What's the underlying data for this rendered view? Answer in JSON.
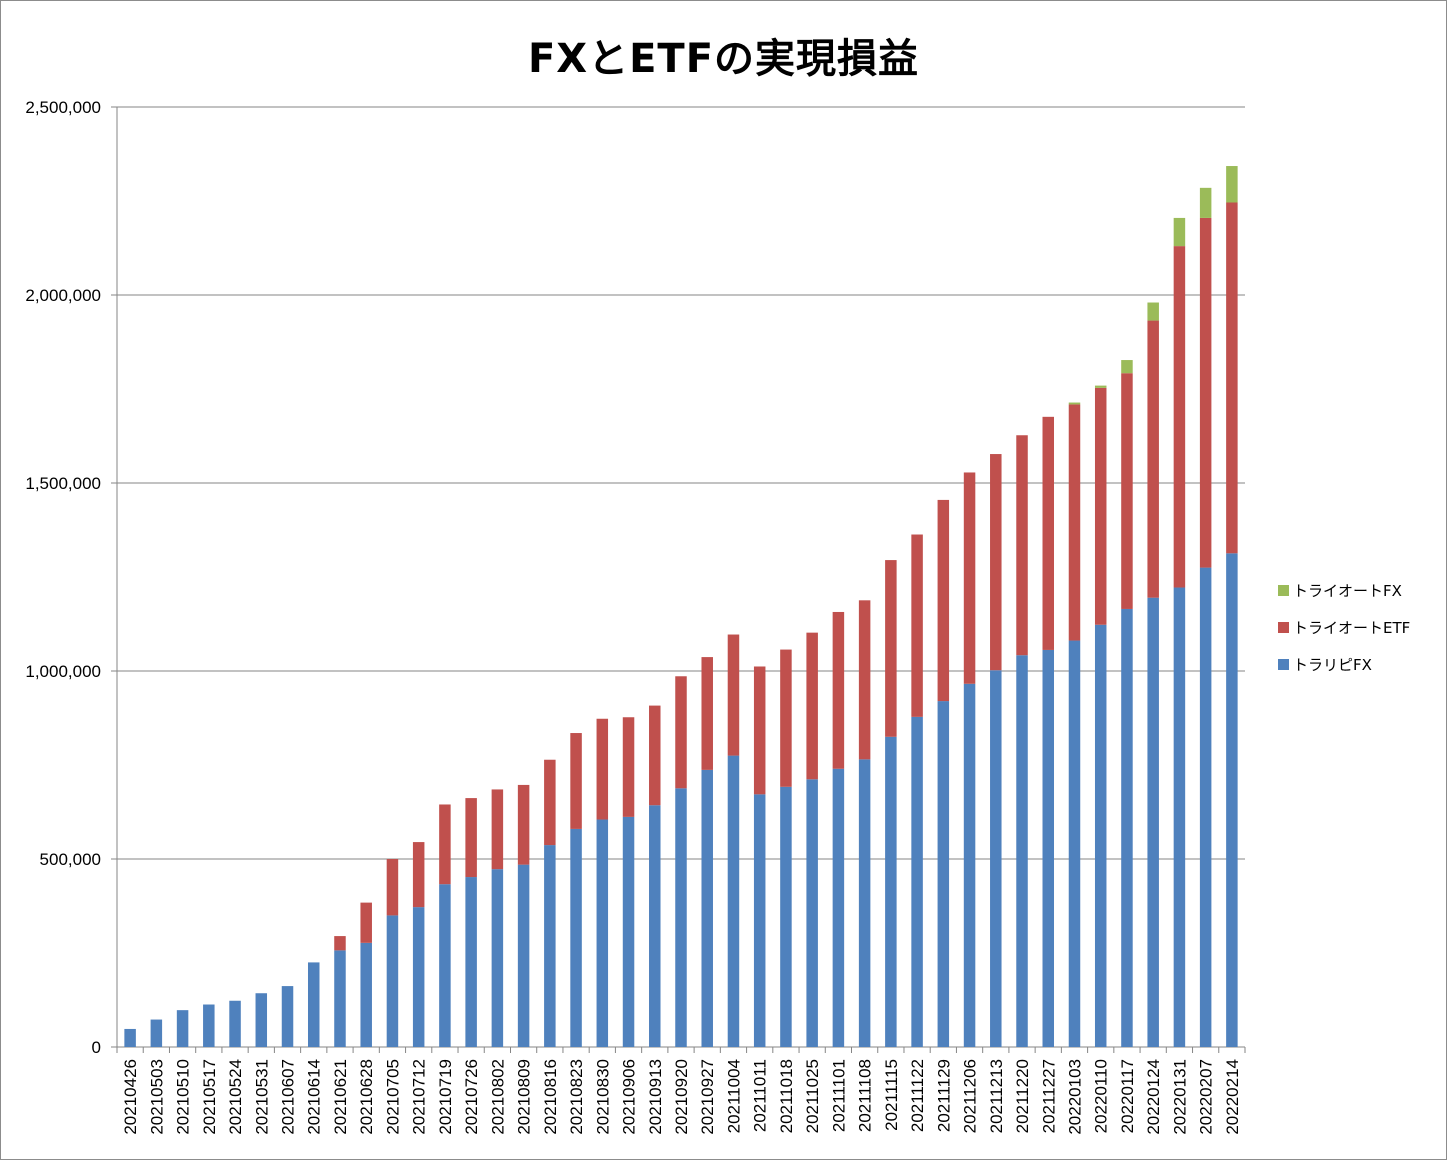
{
  "chart_data": {
    "type": "bar",
    "stacked": true,
    "title": "FXとETFの実現損益",
    "xlabel": "",
    "ylabel": "",
    "ylim": [
      0,
      2500000
    ],
    "yticks": [
      "0",
      "500,000",
      "1,000,000",
      "1,500,000",
      "2,000,000",
      "2,500,000"
    ],
    "ytick_values": [
      0,
      500000,
      1000000,
      1500000,
      2000000,
      2500000
    ],
    "grid": true,
    "legend_position": "right",
    "categories": [
      "20210426",
      "20210503",
      "20210510",
      "20210517",
      "20210524",
      "20210531",
      "20210607",
      "20210614",
      "20210621",
      "20210628",
      "20210705",
      "20210712",
      "20210719",
      "20210726",
      "20210802",
      "20210809",
      "20210816",
      "20210823",
      "20210830",
      "20210906",
      "20210913",
      "20210920",
      "20210927",
      "20211004",
      "20211011",
      "20211018",
      "20211025",
      "20211101",
      "20211108",
      "20211115",
      "20211122",
      "20211129",
      "20211206",
      "20211213",
      "20211220",
      "20211227",
      "20220103",
      "20220110",
      "20220117",
      "20220124",
      "20220131",
      "20220207",
      "20220214"
    ],
    "series": [
      {
        "name": "トラリピFX",
        "color": "#4F81BD",
        "values": [
          48000,
          73000,
          98000,
          113000,
          123000,
          143000,
          162000,
          225000,
          257000,
          277000,
          350000,
          372000,
          433000,
          452000,
          473000,
          485000,
          537000,
          580000,
          605000,
          612000,
          643000,
          688000,
          737000,
          775000,
          672000,
          692000,
          712000,
          740000,
          765000,
          825000,
          878000,
          920000,
          966000,
          1002000,
          1042000,
          1056000,
          1081000,
          1123000,
          1165000,
          1195000,
          1222000,
          1275000,
          1313000
        ]
      },
      {
        "name": "トライオートETF",
        "color": "#C0504D",
        "values": [
          0,
          0,
          0,
          0,
          0,
          0,
          0,
          0,
          38000,
          107000,
          150000,
          173000,
          212000,
          210000,
          212000,
          212000,
          227000,
          255000,
          268000,
          265000,
          265000,
          298000,
          300000,
          322000,
          340000,
          365000,
          390000,
          417000,
          423000,
          470000,
          485000,
          535000,
          562000,
          575000,
          585000,
          620000,
          628000,
          630000,
          627000,
          737000,
          908000,
          930000,
          933000
        ]
      },
      {
        "name": "トライオートFX",
        "color": "#9BBB59",
        "values": [
          0,
          0,
          0,
          0,
          0,
          0,
          0,
          0,
          0,
          0,
          0,
          0,
          0,
          0,
          0,
          0,
          0,
          0,
          0,
          0,
          0,
          0,
          0,
          0,
          0,
          0,
          0,
          0,
          0,
          0,
          0,
          0,
          0,
          0,
          0,
          0,
          5000,
          6000,
          35000,
          48000,
          75000,
          80000,
          97000
        ]
      }
    ]
  },
  "legend": [
    {
      "label": "トライオートFX",
      "color": "#9BBB59"
    },
    {
      "label": "トライオートETF",
      "color": "#C0504D"
    },
    {
      "label": "トラリピFX",
      "color": "#4F81BD"
    }
  ]
}
